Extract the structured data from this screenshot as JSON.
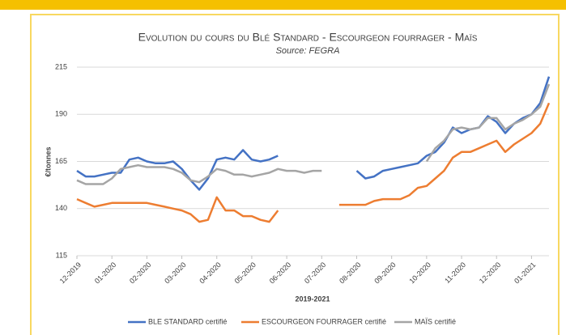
{
  "chart_data": {
    "type": "line",
    "title": "Evolution du cours du Blé Standard - Escourgeon fourrager - Maïs",
    "subtitle": "Source: FEGRA",
    "y_label": "€/tonnes",
    "x_label": "2019-2021",
    "x": [
      0,
      0.25,
      0.5,
      0.75,
      1,
      1.25,
      1.5,
      1.75,
      2,
      2.25,
      2.5,
      2.75,
      3,
      3.25,
      3.5,
      3.75,
      4,
      4.25,
      4.5,
      4.75,
      5,
      5.25,
      5.5,
      5.75,
      6,
      6.25,
      6.5,
      6.75,
      7,
      7.25,
      7.5,
      7.75,
      8,
      8.25,
      8.5,
      8.75,
      9,
      9.25,
      9.5,
      9.75,
      10,
      10.25,
      10.5,
      10.75,
      11,
      11.25,
      11.5,
      11.75,
      12,
      12.25,
      12.5,
      12.75,
      13,
      13.25,
      13.5
    ],
    "xlim": [
      0,
      13.5
    ],
    "xticks": [
      {
        "value": 0,
        "label": "12-2019"
      },
      {
        "value": 1,
        "label": "01-2020"
      },
      {
        "value": 2,
        "label": "02-2020"
      },
      {
        "value": 3,
        "label": "03-2020"
      },
      {
        "value": 4,
        "label": "04-2020"
      },
      {
        "value": 5,
        "label": "05-2020"
      },
      {
        "value": 6,
        "label": "06-2020"
      },
      {
        "value": 7,
        "label": "07-2020"
      },
      {
        "value": 8,
        "label": "08-2020"
      },
      {
        "value": 9,
        "label": "09-2020"
      },
      {
        "value": 10,
        "label": "10-2020"
      },
      {
        "value": 11,
        "label": "11-2020"
      },
      {
        "value": 12,
        "label": "12-2020"
      },
      {
        "value": 13,
        "label": "01-2021"
      }
    ],
    "ylim": [
      115,
      215
    ],
    "yticks": [
      115,
      140,
      165,
      190,
      215
    ],
    "grid": true,
    "legend": "bottom",
    "series": [
      {
        "name": "BLE STANDARD certifié",
        "color": "#4472c4",
        "values": [
          160,
          157,
          157,
          158,
          159,
          159,
          166,
          167,
          165,
          164,
          164,
          165,
          161,
          155,
          150,
          156,
          166,
          167,
          166,
          171,
          166,
          165,
          166,
          168,
          null,
          null,
          null,
          null,
          null,
          null,
          null,
          null,
          160,
          156,
          157,
          160,
          161,
          162,
          163,
          164,
          168,
          170,
          175,
          183,
          180,
          182,
          183,
          189,
          186,
          180,
          185,
          188,
          190,
          196,
          210
        ]
      },
      {
        "name": "ESCOURGEON FOURRAGER certifié",
        "color": "#ed7d31",
        "values": [
          145,
          143,
          141,
          142,
          143,
          143,
          143,
          143,
          143,
          142,
          141,
          140,
          139,
          137,
          133,
          134,
          146,
          139,
          139,
          136,
          136,
          134,
          133,
          139,
          null,
          null,
          null,
          null,
          null,
          null,
          142,
          142,
          142,
          142,
          144,
          145,
          145,
          145,
          147,
          151,
          152,
          156,
          160,
          167,
          170,
          170,
          172,
          174,
          176,
          170,
          174,
          177,
          180,
          185,
          196
        ]
      },
      {
        "name": "MAÏS certifié",
        "color": "#a5a5a5",
        "values": [
          155,
          153,
          153,
          153,
          156,
          161,
          162,
          163,
          162,
          162,
          162,
          161,
          159,
          155,
          154,
          157,
          161,
          160,
          158,
          158,
          157,
          158,
          159,
          161,
          160,
          160,
          159,
          160,
          160,
          null,
          null,
          null,
          null,
          null,
          null,
          null,
          null,
          null,
          null,
          null,
          165,
          172,
          176,
          182,
          183,
          182,
          183,
          188,
          188,
          182,
          185,
          187,
          190,
          194,
          206
        ]
      }
    ]
  }
}
